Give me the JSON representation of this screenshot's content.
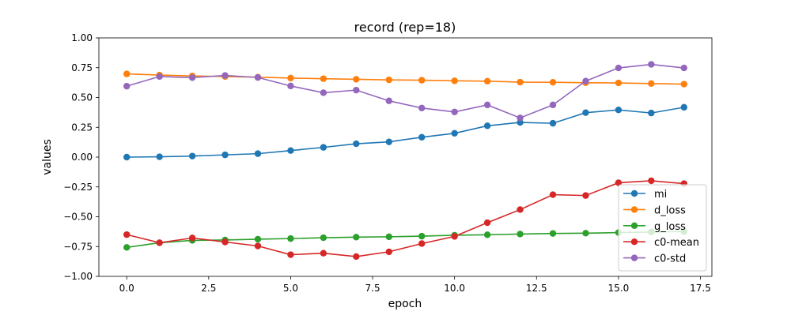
{
  "chart_data": {
    "type": "line",
    "title": "record (rep=18)",
    "xlabel": "epoch",
    "ylabel": "values",
    "xlim": [
      -0.85,
      17.85
    ],
    "ylim": [
      -1.0,
      1.0
    ],
    "xticks": [
      0.0,
      2.5,
      5.0,
      7.5,
      10.0,
      12.5,
      15.0,
      17.5
    ],
    "xtick_labels": [
      "0.0",
      "2.5",
      "5.0",
      "7.5",
      "10.0",
      "12.5",
      "15.0",
      "17.5"
    ],
    "yticks": [
      -1.0,
      -0.75,
      -0.5,
      -0.25,
      0.0,
      0.25,
      0.5,
      0.75,
      1.0
    ],
    "ytick_labels": [
      "−1.00",
      "−0.75",
      "−0.50",
      "−0.25",
      "0.00",
      "0.25",
      "0.50",
      "0.75",
      "1.00"
    ],
    "grid": false,
    "legend_position": "lower-right",
    "x": [
      0,
      1,
      2,
      3,
      4,
      5,
      6,
      7,
      8,
      9,
      10,
      11,
      12,
      13,
      14,
      15,
      16,
      17
    ],
    "series": [
      {
        "name": "mi",
        "color": "#1f77b4",
        "values": [
          0.0,
          0.003,
          0.009,
          0.019,
          0.029,
          0.055,
          0.082,
          0.112,
          0.128,
          0.167,
          0.2,
          0.263,
          0.291,
          0.284,
          0.373,
          0.396,
          0.37,
          0.418
        ]
      },
      {
        "name": "d_loss",
        "color": "#ff7f0e",
        "values": [
          0.698,
          0.688,
          0.681,
          0.676,
          0.671,
          0.663,
          0.658,
          0.653,
          0.648,
          0.645,
          0.64,
          0.637,
          0.629,
          0.628,
          0.624,
          0.622,
          0.617,
          0.612
        ]
      },
      {
        "name": "g_loss",
        "color": "#2ca02c",
        "values": [
          -0.757,
          -0.718,
          -0.698,
          -0.695,
          -0.688,
          -0.683,
          -0.676,
          -0.671,
          -0.668,
          -0.663,
          -0.655,
          -0.651,
          -0.645,
          -0.64,
          -0.638,
          -0.633,
          -0.628,
          -0.624
        ]
      },
      {
        "name": "c0-mean",
        "color": "#d62728",
        "values": [
          -0.65,
          -0.718,
          -0.678,
          -0.712,
          -0.745,
          -0.818,
          -0.806,
          -0.834,
          -0.794,
          -0.725,
          -0.665,
          -0.55,
          -0.44,
          -0.315,
          -0.322,
          -0.215,
          -0.198,
          -0.222
        ]
      },
      {
        "name": "c0-std",
        "color": "#9467bd",
        "values": [
          0.595,
          0.676,
          0.667,
          0.685,
          0.668,
          0.597,
          0.54,
          0.562,
          0.472,
          0.412,
          0.379,
          0.438,
          0.329,
          0.438,
          0.638,
          0.748,
          0.778,
          0.748
        ]
      }
    ]
  }
}
